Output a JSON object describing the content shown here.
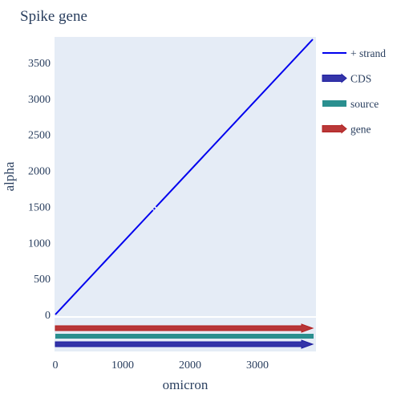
{
  "chart_data": {
    "type": "line",
    "title": "Spike gene",
    "xlabel": "omicron",
    "ylabel": "alpha",
    "xlim": [
      0,
      3822
    ],
    "ylim": [
      0,
      3822
    ],
    "x_ticks": [
      0,
      1000,
      2000,
      3000
    ],
    "y_ticks": [
      0,
      500,
      1000,
      1500,
      2000,
      2500,
      3000,
      3500
    ],
    "grid": false,
    "legend_position": "right",
    "colors": {
      "plot_bg": "#e5ecf6",
      "strand": "#0000ee",
      "cds": "#1f1fa0",
      "source": "#2a8f8f",
      "gene": "#b22222"
    },
    "series": [
      {
        "name": "+ strand",
        "kind": "line",
        "x": [
          0,
          1455,
          1485,
          3822
        ],
        "y": [
          0,
          1460,
          1490,
          3822
        ],
        "segments": [
          [
            0,
            1450
          ],
          [
            1460,
            1480
          ],
          [
            1495,
            3822
          ]
        ]
      }
    ],
    "tracks": [
      {
        "name": "gene",
        "start": 0,
        "end": 3822,
        "arrow": true
      },
      {
        "name": "source",
        "start": 0,
        "end": 3822,
        "arrow": false
      },
      {
        "name": "CDS",
        "start": 0,
        "end": 3822,
        "arrow": true
      }
    ],
    "legend": [
      {
        "name": "+ strand",
        "symbol": "line",
        "color": "#0000ee"
      },
      {
        "name": "CDS",
        "symbol": "arrow-bar",
        "color": "#1f1fa0"
      },
      {
        "name": "source",
        "symbol": "bar",
        "color": "#2a8f8f"
      },
      {
        "name": "gene",
        "symbol": "arrow-bar",
        "color": "#b22222"
      }
    ]
  }
}
